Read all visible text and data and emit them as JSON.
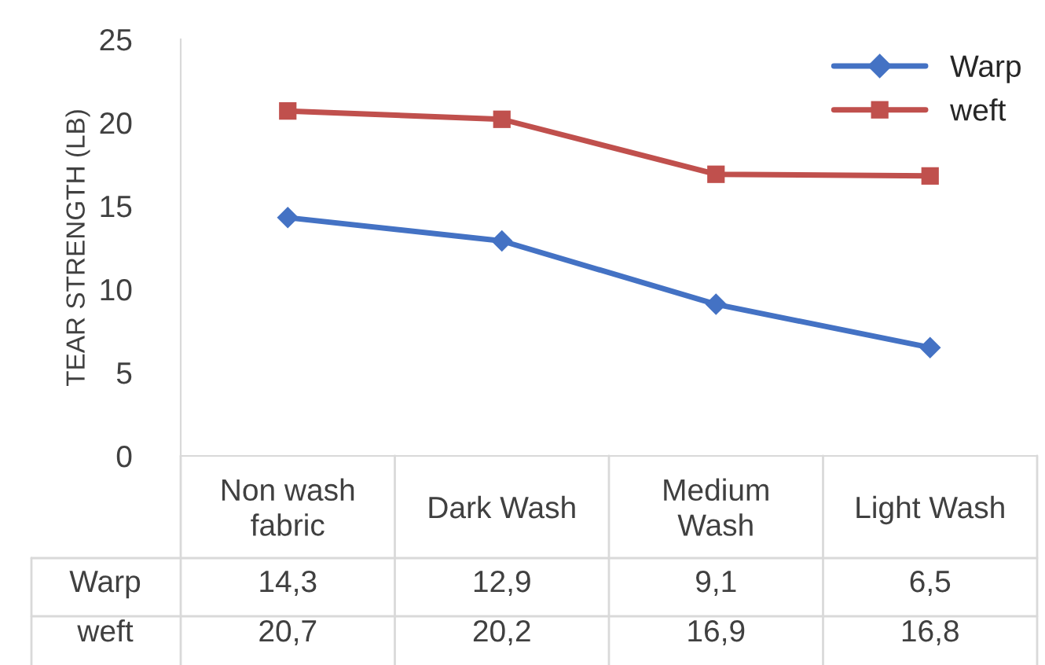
{
  "chart_data": {
    "type": "line",
    "ylabel": "TEAR STRENGTH (LB)",
    "categories": [
      "Non wash fabric",
      "Dark Wash",
      "Medium Wash",
      "Light Wash"
    ],
    "series": [
      {
        "name": "Warp",
        "color": "#4472c4",
        "marker": "diamond",
        "values": [
          14.3,
          12.9,
          9.1,
          6.5
        ],
        "value_labels": [
          "14,3",
          "12,9",
          "9,1",
          "6,5"
        ]
      },
      {
        "name": "weft",
        "color": "#c0504d",
        "marker": "square",
        "values": [
          20.7,
          20.2,
          16.9,
          16.8
        ],
        "value_labels": [
          "20,7",
          "20,2",
          "16,9",
          "16,8"
        ]
      }
    ],
    "ylim": [
      0,
      25
    ],
    "yticks": [
      0,
      5,
      10,
      15,
      20,
      25
    ],
    "grid": false,
    "legend": "top right"
  }
}
